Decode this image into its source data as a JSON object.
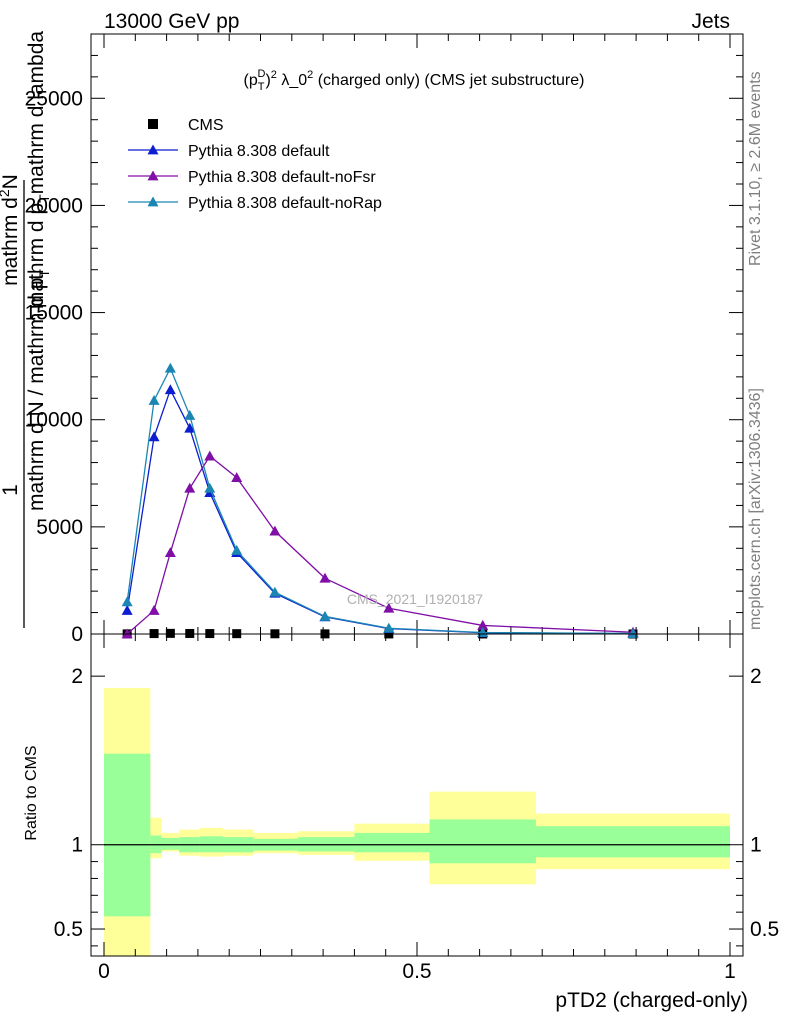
{
  "header": {
    "left": "13000 GeV pp",
    "right": "Jets"
  },
  "side_text": {
    "rivet": "Rivet 3.1.10, ≥ 2.6M events",
    "mcplots": "mcplots.cern.ch [arXiv:1306.3436]"
  },
  "chart_data": [
    {
      "type": "line",
      "panel": "main",
      "title_parts": {
        "base": "(p",
        "sub": "T",
        "sup": "D",
        "rest": ")",
        "sq": "2",
        "lambda": " λ_0",
        "lsq": "2",
        "tail": " (charged only) (CMS jet substructure)"
      },
      "watermark": "CMS_2021_I1920187",
      "ylabel": "1 / mathrm d N / mathrm d p_T mathrm d p_T mathrm d^2N / mathrm d lambda",
      "ylabel_parts": {
        "numerator": "1",
        "den_pre": "mathrm d N / mathrm d p",
        "den_sub": "T",
        "num2": "mathrm d",
        "num2_sup": "2",
        "num2_rest": "N",
        "den2_pre": "mathrm d p",
        "den2_sub": "T",
        "den2_rest": "mathrm d lambda"
      },
      "xlim": [
        0,
        1
      ],
      "ylim": [
        0,
        28000
      ],
      "y_ticks": [
        0,
        5000,
        10000,
        15000,
        20000,
        25000
      ],
      "y_tick_labels": [
        "0",
        "5000",
        "10000",
        "15000",
        "20000",
        "25000"
      ],
      "series": [
        {
          "name": "CMS",
          "marker": "square",
          "color": "#000000",
          "x": [
            0.037,
            0.08,
            0.106,
            0.137,
            0.169,
            0.212,
            0.273,
            0.353,
            0.455,
            0.605,
            0.845
          ],
          "values": [
            5,
            20,
            30,
            25,
            20,
            15,
            10,
            6,
            3,
            1,
            0.5
          ]
        },
        {
          "name": "Pythia 8.308 default",
          "marker": "triangle",
          "color": "#0b1fd0",
          "x": [
            0.037,
            0.08,
            0.106,
            0.137,
            0.169,
            0.212,
            0.273,
            0.353,
            0.455,
            0.605,
            0.845
          ],
          "values": [
            1100,
            9200,
            11400,
            9600,
            6600,
            3800,
            1900,
            800,
            250,
            60,
            20
          ]
        },
        {
          "name": "Pythia 8.308 default-noFsr",
          "marker": "triangle",
          "color": "#7f0fa6",
          "x": [
            0.037,
            0.08,
            0.106,
            0.137,
            0.169,
            0.212,
            0.273,
            0.353,
            0.455,
            0.605,
            0.845
          ],
          "values": [
            0,
            1100,
            3800,
            6800,
            8300,
            7300,
            4800,
            2600,
            1200,
            400,
            80
          ]
        },
        {
          "name": "Pythia 8.308 default-noRap",
          "marker": "triangle",
          "color": "#1b86b3",
          "x": [
            0.037,
            0.08,
            0.106,
            0.137,
            0.169,
            0.212,
            0.273,
            0.353,
            0.455,
            0.605,
            0.845
          ],
          "values": [
            1500,
            10900,
            12400,
            10200,
            6800,
            3900,
            1950,
            820,
            270,
            70,
            20
          ]
        }
      ]
    },
    {
      "type": "area",
      "panel": "ratio",
      "ylabel": "Ratio to CMS",
      "xlabel": "pTD2 (charged-only)",
      "xlim": [
        0,
        1
      ],
      "ylim": [
        0.34,
        2.25
      ],
      "x_ticks": [
        0,
        0.5,
        1
      ],
      "x_tick_labels": [
        "0",
        "0.5",
        "1"
      ],
      "y_ticks": [
        0.5,
        1,
        2
      ],
      "y_tick_labels": [
        "0.5",
        "1",
        "2"
      ],
      "bins": [
        {
          "x0": 0.0,
          "x1": 0.074,
          "stat": [
            0.575,
            1.54
          ],
          "total": [
            0.3,
            1.93
          ]
        },
        {
          "x0": 0.074,
          "x1": 0.092,
          "stat": [
            0.95,
            1.055
          ],
          "total": [
            0.92,
            1.16
          ]
        },
        {
          "x0": 0.092,
          "x1": 0.12,
          "stat": [
            0.97,
            1.04
          ],
          "total": [
            0.96,
            1.07
          ]
        },
        {
          "x0": 0.12,
          "x1": 0.153,
          "stat": [
            0.955,
            1.045
          ],
          "total": [
            0.935,
            1.09
          ]
        },
        {
          "x0": 0.153,
          "x1": 0.19,
          "stat": [
            0.955,
            1.05
          ],
          "total": [
            0.93,
            1.1
          ]
        },
        {
          "x0": 0.19,
          "x1": 0.239,
          "stat": [
            0.955,
            1.045
          ],
          "total": [
            0.935,
            1.09
          ]
        },
        {
          "x0": 0.239,
          "x1": 0.31,
          "stat": [
            0.965,
            1.035
          ],
          "total": [
            0.95,
            1.07
          ]
        },
        {
          "x0": 0.31,
          "x1": 0.4,
          "stat": [
            0.96,
            1.045
          ],
          "total": [
            0.94,
            1.08
          ]
        },
        {
          "x0": 0.4,
          "x1": 0.52,
          "stat": [
            0.955,
            1.07
          ],
          "total": [
            0.905,
            1.125
          ]
        },
        {
          "x0": 0.52,
          "x1": 0.69,
          "stat": [
            0.89,
            1.15
          ],
          "total": [
            0.765,
            1.315
          ]
        },
        {
          "x0": 0.69,
          "x1": 1.0,
          "stat": [
            0.925,
            1.11
          ],
          "total": [
            0.855,
            1.185
          ]
        }
      ]
    }
  ]
}
